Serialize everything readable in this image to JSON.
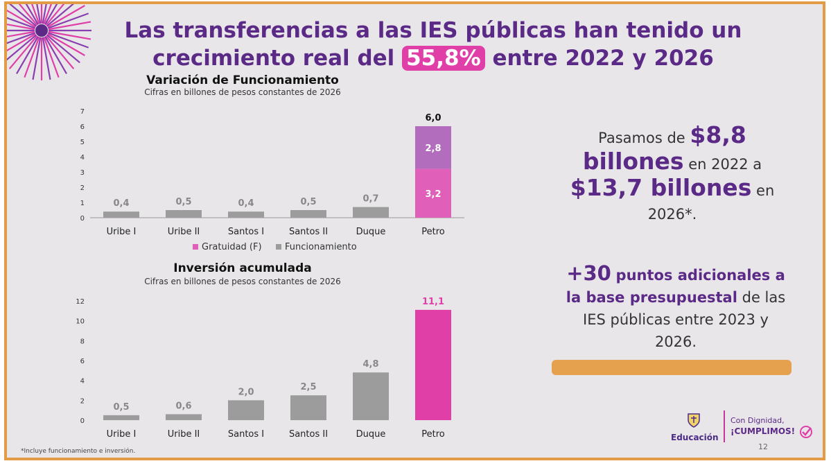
{
  "title": {
    "line1": "Las transferencias a las IES públicas han tenido un",
    "line2_pre": "crecimiento real del",
    "line2_highlight": "55,8%",
    "line2_post": "entre 2022 y 2026"
  },
  "colors": {
    "purple": "#5b2a86",
    "pink": "#e05fb8",
    "light_purple": "#b36dbd",
    "grey": "#9c9c9c",
    "magenta": "#e03fa8",
    "orange": "#e39b45"
  },
  "chart_data": [
    {
      "type": "bar",
      "stacked": true,
      "title": "Variación de Funcionamiento",
      "subtitle": "Cifras en billones de pesos constantes de 2026",
      "categories": [
        "Uribe I",
        "Uribe II",
        "Santos I",
        "Santos II",
        "Duque",
        "Petro"
      ],
      "series": [
        {
          "name": "Gratuidad (F)",
          "values": [
            0,
            0,
            0,
            0,
            0,
            3.2
          ]
        },
        {
          "name": "Funcionamiento",
          "values": [
            0.4,
            0.5,
            0.4,
            0.5,
            0.7,
            2.8
          ]
        }
      ],
      "labels": [
        "0,4",
        "0,5",
        "0,4",
        "0,5",
        "0,7",
        "6,0"
      ],
      "segment_labels": [
        "3,2",
        "2,8"
      ],
      "ylim": [
        0,
        7
      ],
      "yticks": [
        "0",
        "1",
        "2",
        "3",
        "4",
        "5",
        "6",
        "7"
      ],
      "legend": "bottom",
      "grid": false
    },
    {
      "type": "bar",
      "title": "Inversión acumulada",
      "subtitle": "Cifras en billones de pesos constantes de 2026",
      "categories": [
        "Uribe I",
        "Uribe II",
        "Santos I",
        "Santos II",
        "Duque",
        "Petro"
      ],
      "values": [
        0.5,
        0.6,
        2.0,
        2.5,
        4.8,
        11.1
      ],
      "labels": [
        "0,5",
        "0,6",
        "2,0",
        "2,5",
        "4,8",
        "11,1"
      ],
      "ylim": [
        0,
        12
      ],
      "yticks": [
        "0",
        "2",
        "4",
        "6",
        "8",
        "10",
        "12"
      ],
      "grid": false
    }
  ],
  "right": {
    "p1_a": "Pasamos de",
    "p1_b": "$8,8",
    "p1_c": "billones",
    "p1_d": "en 2022 a",
    "p1_e": "$13,7 billones",
    "p1_f": "en",
    "p1_g": "2026*.",
    "p2_a": "+30",
    "p2_b": "puntos adicionales a",
    "p2_c": "la base presupuestal",
    "p2_d": "de las",
    "p2_e": "IES públicas entre 2023 y",
    "p2_f": "2026."
  },
  "footnote": "*Incluye funcionamiento e inversión.",
  "logos": {
    "edu": "Educación",
    "dig1": "Con Dignidad,",
    "dig2": "¡CUMPLIMOS!"
  },
  "page_number": "12",
  "icons": [
    "sunburst-icon",
    "coat-of-arms-icon",
    "checkmark-icon"
  ]
}
